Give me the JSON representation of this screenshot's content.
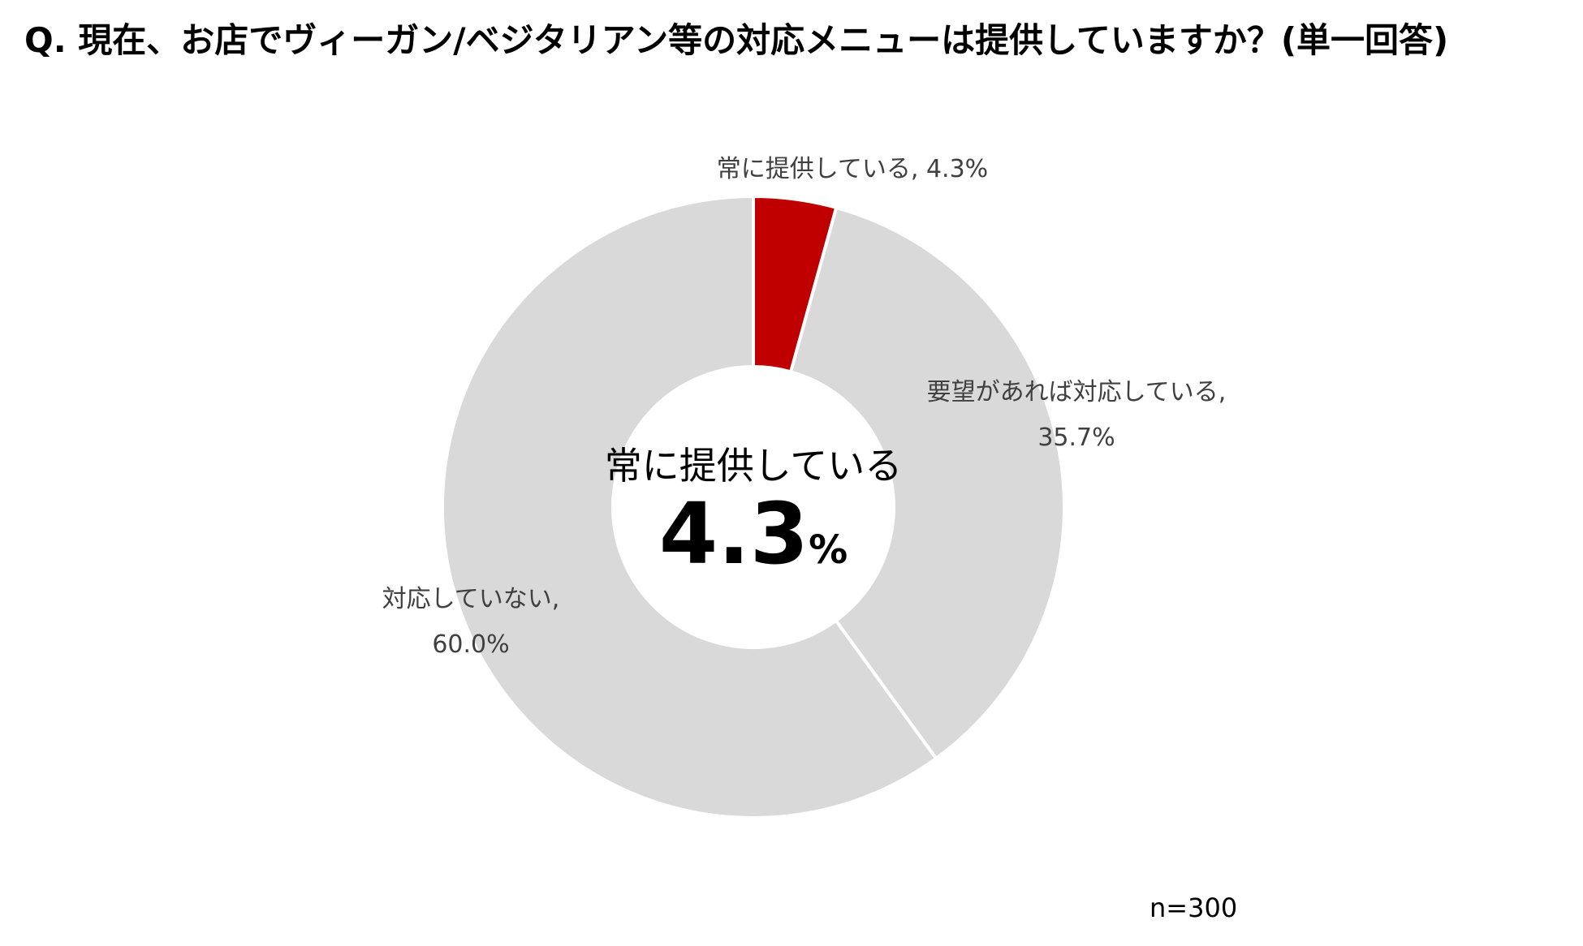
{
  "title": "Q. 現在、お店でヴィーガン/ベジタリアン等の対応メニューは提供していますか？(単一回答)",
  "sample_size": "n=300",
  "chart_data": {
    "type": "pie",
    "variant": "donut",
    "title": "Q. 現在、お店でヴィーガン/ベジタリアン等の対応メニューは提供していますか？(単一回答)",
    "unit": "%",
    "categories": [
      "常に提供している",
      "要望があれば対応している",
      "対応していない"
    ],
    "values": [
      4.3,
      35.7,
      60.0
    ],
    "colors": [
      "#c00000",
      "#d9d9d9",
      "#d9d9d9"
    ],
    "slice_labels": [
      [
        "常に提供している, 4.3%"
      ],
      [
        "要望があれば対応している,",
        "35.7%"
      ],
      [
        "対応していない,",
        "60.0%"
      ]
    ],
    "center": {
      "label": "常に提供している",
      "value": "4.3",
      "unit": "%"
    },
    "legend": "none"
  }
}
